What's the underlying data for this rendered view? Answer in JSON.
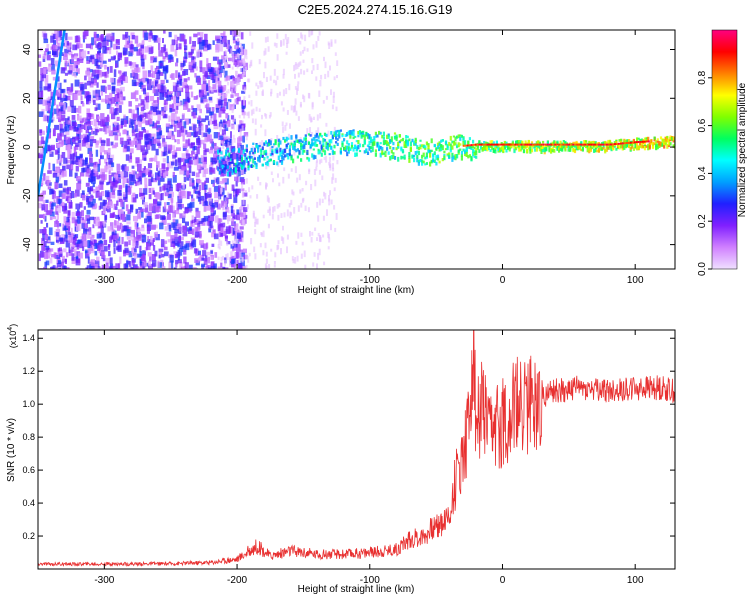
{
  "title": "C2E5.2024.274.15.16.G19",
  "chart_data": [
    {
      "type": "heatmap",
      "xlabel": "Height of straight line (km)",
      "ylabel": "Frequency (Hz)",
      "xlim": [
        -350,
        130
      ],
      "ylim": [
        -50,
        48
      ],
      "xticks": [
        -300,
        -200,
        -100,
        0,
        100
      ],
      "yticks": [
        -40,
        -20,
        0,
        20,
        40
      ],
      "colorbar": {
        "label": "Normalized spectral amplitude",
        "range": [
          0,
          1
        ],
        "ticks": [
          "0.0",
          "0.2",
          "0.4",
          "0.6",
          "0.8"
        ],
        "ticks_values": [
          0,
          0.2,
          0.4,
          0.6,
          0.8
        ],
        "colormap": [
          "#f0e0ff",
          "#d080ff",
          "#8020ff",
          "#2020ff",
          "#00a0ff",
          "#00ffff",
          "#00ff60",
          "#80ff00",
          "#ffff00",
          "#ff8000",
          "#ff0000",
          "#ff0080"
        ]
      },
      "ridge": [
        {
          "x": -215,
          "y": -6
        },
        {
          "x": -200,
          "y": -4
        },
        {
          "x": -180,
          "y": -2
        },
        {
          "x": -160,
          "y": 0
        },
        {
          "x": -140,
          "y": 1
        },
        {
          "x": -120,
          "y": 3
        },
        {
          "x": -100,
          "y": 2
        },
        {
          "x": -80,
          "y": 1
        },
        {
          "x": -60,
          "y": -2
        },
        {
          "x": -40,
          "y": 0
        },
        {
          "x": -20,
          "y": 1
        },
        {
          "x": 0,
          "y": 1
        },
        {
          "x": 20,
          "y": 1
        },
        {
          "x": 40,
          "y": 1
        },
        {
          "x": 60,
          "y": 1
        },
        {
          "x": 80,
          "y": 1
        },
        {
          "x": 100,
          "y": 2
        },
        {
          "x": 130,
          "y": 3
        }
      ],
      "noise_region": {
        "x_from": -350,
        "x_to": -210,
        "y_from": -50,
        "y_to": 48
      },
      "diagonal_feature": [
        {
          "x": -350,
          "y": -20
        },
        {
          "x": -330,
          "y": 48
        }
      ]
    },
    {
      "type": "line",
      "xlabel": "Height of straight line (km)",
      "ylabel": "SNR (10 * v/v)",
      "scale_label": "(x10",
      "scale_exponent": "4",
      "xlim": [
        -350,
        130
      ],
      "ylim": [
        0,
        14500
      ],
      "xticks": [
        -300,
        -200,
        -100,
        0,
        100
      ],
      "yticks": [
        2000,
        4000,
        6000,
        8000,
        10000,
        12000,
        14000
      ],
      "ytick_labels": [
        "0.2",
        "0.4",
        "0.6",
        "0.8",
        "1.0",
        "1.2",
        "1.4"
      ],
      "color": "#e83030",
      "series": [
        {
          "x": [
            -350,
            -300,
            -250,
            -220,
            -200,
            -185,
            -175,
            -160,
            -140,
            -120,
            -100,
            -80,
            -70,
            -60,
            -50,
            -40,
            -35,
            -30,
            -25,
            -22,
            -20,
            -15,
            -10,
            0,
            10,
            20,
            30,
            40,
            60,
            80,
            100,
            120,
            130
          ],
          "values": [
            300,
            300,
            320,
            400,
            600,
            1400,
            800,
            1100,
            900,
            900,
            1000,
            1200,
            1800,
            2000,
            2600,
            3200,
            5500,
            7000,
            9000,
            14300,
            8800,
            9800,
            8000,
            9000,
            9800,
            10000,
            10500,
            10800,
            11000,
            10800,
            11000,
            11000,
            10800
          ]
        }
      ]
    }
  ]
}
